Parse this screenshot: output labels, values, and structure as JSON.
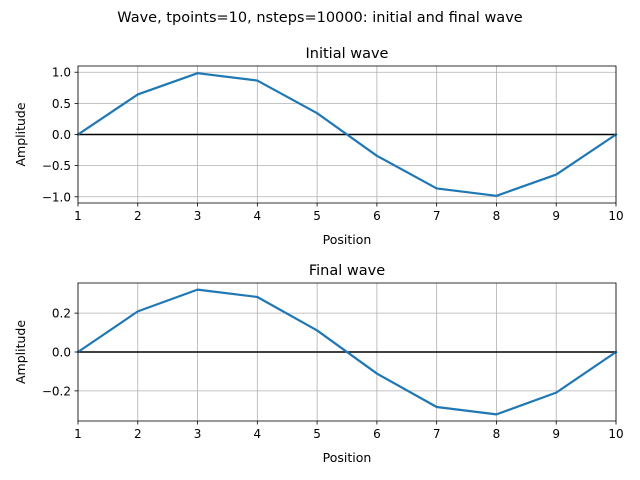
{
  "suptitle": "Wave, tpoints=10, nsteps=10000: initial and final wave",
  "colors": {
    "series": "#1f77b4",
    "grid": "#b0b0b0",
    "zero_line": "#000000"
  },
  "chart_data": [
    {
      "type": "line",
      "title": "Initial wave",
      "xlabel": "Position",
      "ylabel": "Amplitude",
      "grid": true,
      "xlim": [
        1,
        10
      ],
      "ylim": [
        -1.1,
        1.1
      ],
      "xticks": [
        1,
        2,
        3,
        4,
        5,
        6,
        7,
        8,
        9,
        10
      ],
      "xtick_labels": [
        "1",
        "2",
        "3",
        "4",
        "5",
        "6",
        "7",
        "8",
        "9",
        "10"
      ],
      "yticks": [
        -1.0,
        -0.5,
        0.0,
        0.5,
        1.0
      ],
      "ytick_labels": [
        "−1.0",
        "−0.5",
        "0.0",
        "0.5",
        "1.0"
      ],
      "reference_line_y": 0,
      "series": [
        {
          "x": [
            1,
            2,
            3,
            4,
            5,
            6,
            7,
            8,
            9,
            10
          ],
          "values": [
            0.0,
            0.643,
            0.985,
            0.866,
            0.342,
            -0.342,
            -0.866,
            -0.985,
            -0.643,
            0.0
          ]
        }
      ]
    },
    {
      "type": "line",
      "title": "Final wave",
      "xlabel": "Position",
      "ylabel": "Amplitude",
      "grid": true,
      "xlim": [
        1,
        10
      ],
      "ylim": [
        -0.355,
        0.355
      ],
      "xticks": [
        1,
        2,
        3,
        4,
        5,
        6,
        7,
        8,
        9,
        10
      ],
      "xtick_labels": [
        "1",
        "2",
        "3",
        "4",
        "5",
        "6",
        "7",
        "8",
        "9",
        "10"
      ],
      "yticks": [
        -0.2,
        0.0,
        0.2
      ],
      "ytick_labels": [
        "−0.2",
        "0.0",
        "0.2"
      ],
      "reference_line_y": 0,
      "series": [
        {
          "x": [
            1,
            2,
            3,
            4,
            5,
            6,
            7,
            8,
            9,
            10
          ],
          "values": [
            0.0,
            0.209,
            0.321,
            0.283,
            0.111,
            -0.111,
            -0.283,
            -0.321,
            -0.209,
            0.0
          ]
        }
      ]
    }
  ]
}
